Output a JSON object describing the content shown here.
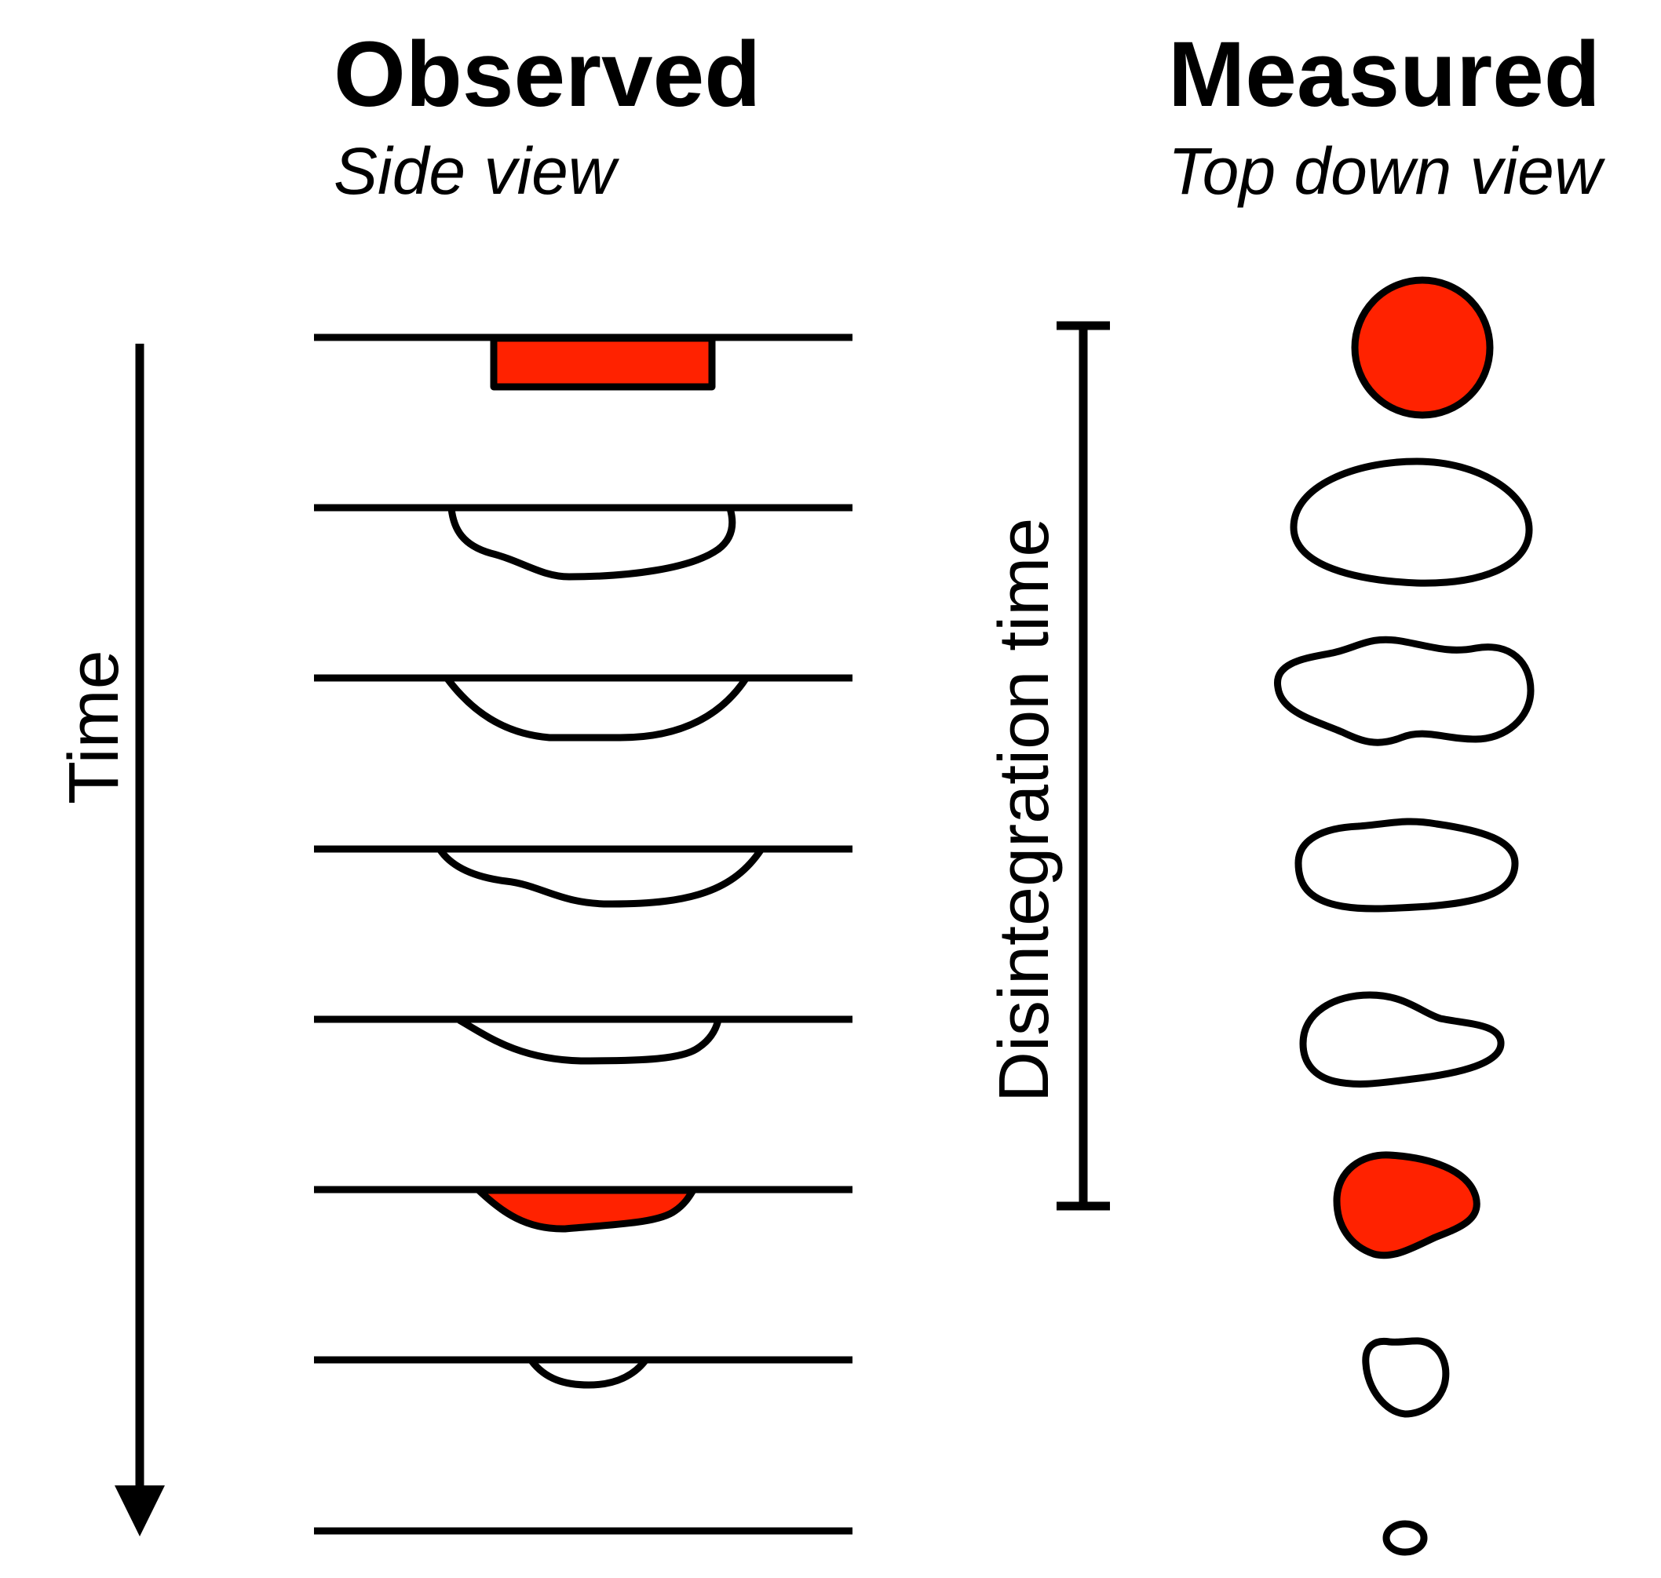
{
  "observed": {
    "title": "Observed",
    "subtitle": "Side view"
  },
  "measured": {
    "title": "Measured",
    "subtitle": "Top down view"
  },
  "time_axis": {
    "label": "Time"
  },
  "disintegration": {
    "label": "Disintegration time"
  },
  "colors": {
    "tablet": "#ff2200",
    "outline": "#000000",
    "background": "#ffffff"
  },
  "stages": [
    {
      "state": "intact",
      "filled": true
    },
    {
      "state": "disintegrating",
      "filled": false
    },
    {
      "state": "disintegrating",
      "filled": false
    },
    {
      "state": "disintegrating",
      "filled": false
    },
    {
      "state": "disintegrating",
      "filled": false
    },
    {
      "state": "residue",
      "filled": true
    },
    {
      "state": "small remnant",
      "filled": false
    },
    {
      "state": "fully dissolved",
      "filled": false
    }
  ]
}
